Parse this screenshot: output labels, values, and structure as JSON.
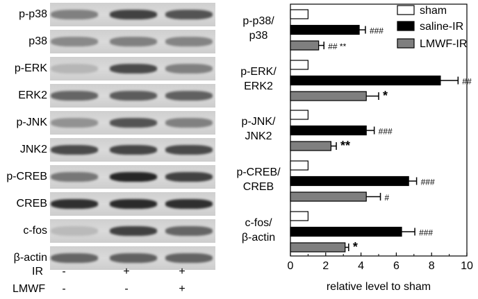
{
  "blot": {
    "rows": [
      {
        "label": "p-p38",
        "intensity": [
          0.4,
          0.75,
          0.65
        ]
      },
      {
        "label": "p38",
        "intensity": [
          0.35,
          0.4,
          0.38
        ]
      },
      {
        "label": "p-ERK",
        "intensity": [
          0.1,
          0.7,
          0.4
        ]
      },
      {
        "label": "ERK2",
        "intensity": [
          0.55,
          0.6,
          0.58
        ]
      },
      {
        "label": "p-JNK",
        "intensity": [
          0.3,
          0.65,
          0.4
        ]
      },
      {
        "label": "JNK2",
        "intensity": [
          0.7,
          0.72,
          0.7
        ]
      },
      {
        "label": "p-CREB",
        "intensity": [
          0.45,
          0.9,
          0.75
        ]
      },
      {
        "label": "CREB",
        "intensity": [
          0.85,
          0.88,
          0.85
        ]
      },
      {
        "label": "c-fos",
        "intensity": [
          0.08,
          0.75,
          0.55
        ]
      },
      {
        "label": "β-actin",
        "intensity": [
          0.55,
          0.58,
          0.56
        ]
      }
    ],
    "treatments": [
      {
        "label": "IR",
        "signs": [
          "-",
          "+",
          "+"
        ]
      },
      {
        "label": "LMWF",
        "signs": [
          "-",
          "-",
          "+"
        ]
      }
    ]
  },
  "chart_data": {
    "type": "bar",
    "orientation": "horizontal",
    "categories": [
      "p-p38/\np38",
      "p-ERK/\nERK2",
      "p-JNK/\nJNK2",
      "p-CREB/\nCREB",
      "c-fos/\nβ-actin"
    ],
    "series": [
      {
        "name": "sham",
        "color": "#ffffff",
        "values": [
          1,
          1,
          1,
          1,
          1
        ],
        "errors": [
          0,
          0,
          0,
          0,
          0
        ],
        "annotations": [
          "",
          "",
          "",
          "",
          ""
        ]
      },
      {
        "name": "saline-IR",
        "color": "#000000",
        "values": [
          3.9,
          8.5,
          4.3,
          6.7,
          6.3
        ],
        "errors": [
          0.35,
          1.0,
          0.45,
          0.45,
          0.75
        ],
        "annotations": [
          "###",
          "##",
          "###",
          "###",
          "###"
        ]
      },
      {
        "name": "LMWF-IR",
        "color": "#7f7f7f",
        "values": [
          1.6,
          4.3,
          2.3,
          4.3,
          3.1
        ],
        "errors": [
          0.3,
          0.7,
          0.3,
          0.8,
          0.2
        ],
        "annotations": [
          "## **",
          "*",
          "**",
          "#",
          "*"
        ]
      }
    ],
    "xlabel": "relative level to sham",
    "ylabel": "",
    "xlim": [
      0,
      10
    ],
    "xticks": [
      0,
      2,
      4,
      6,
      8,
      10
    ],
    "legend_position": "top-right",
    "grid": false
  }
}
